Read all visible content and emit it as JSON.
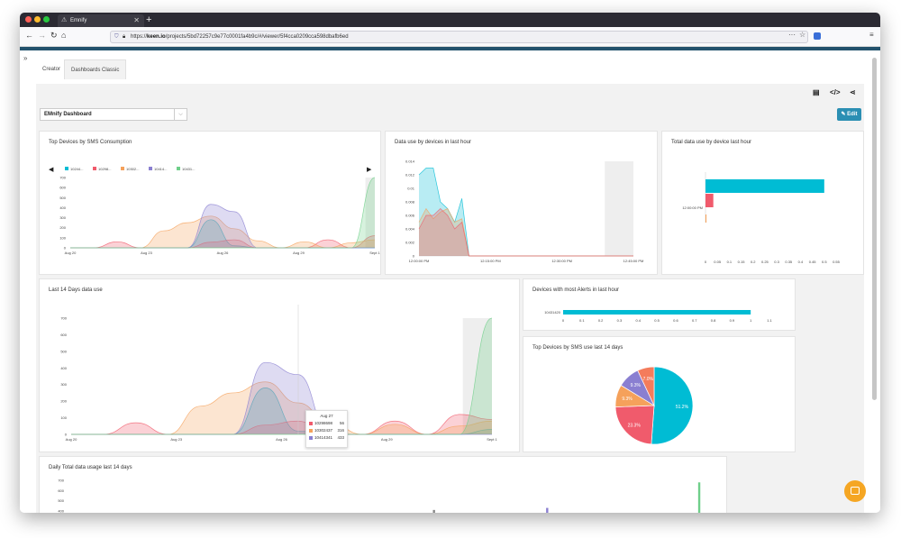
{
  "browser": {
    "tab_title": "Emnify",
    "url_prefix": "https://",
    "url_host": "keen.io",
    "url_path": "/projects/5bd72257c9e77c0001fa4b9c/#/viewer/5f4cca0209cca598dbafb6ed",
    "new_tab": "+",
    "more": "···",
    "star": "☆"
  },
  "nav_tabs": [
    {
      "label": "Creator"
    },
    {
      "label": "Dashboards Classic"
    }
  ],
  "dashboard_select": {
    "value": "EMnify Dashboard",
    "chev": "⌵"
  },
  "edit_button": {
    "label": "✎ Edit"
  },
  "toolbar": {
    "doc": "▤",
    "code": "</>",
    "share": "⋖"
  },
  "colors": {
    "teal": "#00bcd4",
    "red": "#f05b6c",
    "orange": "#f5a15b",
    "purple": "#8a7fd1",
    "coral": "#f47c5c",
    "green": "#6fcf8a",
    "gray": "#888"
  },
  "cards": {
    "sms": {
      "title": "Top Devices by SMS Consumption"
    },
    "data_hour": {
      "title": "Data use by devices in last hour"
    },
    "total_device": {
      "title": "Total data use by device last hour"
    },
    "days14": {
      "title": "Last 14 Days data use"
    },
    "alerts": {
      "title": "Devices with most Alerts in last hour"
    },
    "sms14": {
      "title": "Top Devices by SMS use last 14 days"
    },
    "daily": {
      "title": "Daily Total data usage last 14 days"
    }
  },
  "tooltip": {
    "date": "Aug 27",
    "rows": [
      {
        "device": "10298698",
        "value": "56",
        "color": "#f05b6c"
      },
      {
        "device": "10302437",
        "value": "316",
        "color": "#f5a15b"
      },
      {
        "device": "10414341",
        "value": "433",
        "color": "#8a7fd1"
      }
    ]
  },
  "chart_data": [
    {
      "type": "area",
      "title": "Top Devices by SMS Consumption",
      "legend": [
        "10244...",
        "10298...",
        "10302...",
        "10414...",
        "10431..."
      ],
      "x_ticks": [
        "Aug 20",
        "Aug 23",
        "Aug 26",
        "Aug 29",
        "Sept 1"
      ],
      "y_ticks": [
        "0",
        "100",
        "200",
        "300",
        "400",
        "500",
        "600",
        "700"
      ],
      "ylim": [
        0,
        700
      ],
      "x": [
        0,
        1,
        2,
        3,
        4,
        5,
        6,
        7,
        8,
        9,
        10,
        11,
        12,
        13
      ],
      "series": [
        {
          "color": "#00bcd4",
          "values": [
            0,
            0,
            0,
            0,
            0,
            0,
            280,
            20,
            0,
            0,
            0,
            0,
            0,
            0
          ]
        },
        {
          "color": "#f05b6c",
          "values": [
            0,
            0,
            60,
            0,
            0,
            0,
            56,
            80,
            0,
            0,
            0,
            80,
            0,
            120
          ]
        },
        {
          "color": "#f5a15b",
          "values": [
            0,
            0,
            0,
            0,
            170,
            250,
            316,
            190,
            70,
            0,
            60,
            0,
            50,
            80
          ]
        },
        {
          "color": "#8a7fd1",
          "values": [
            0,
            0,
            0,
            0,
            0,
            0,
            433,
            360,
            0,
            0,
            0,
            0,
            0,
            0
          ]
        },
        {
          "color": "#6fcf8a",
          "values": [
            0,
            0,
            0,
            0,
            0,
            0,
            0,
            0,
            0,
            0,
            0,
            0,
            0,
            700
          ]
        }
      ]
    },
    {
      "type": "area",
      "title": "Data use by devices in last hour",
      "x_ticks": [
        "12:00:00 PM",
        "12:15:00 PM",
        "12:30:00 PM",
        "12:45:00 PM"
      ],
      "y_ticks": [
        "0",
        "0.002",
        "0.004",
        "0.006",
        "0.008",
        "0.01",
        "0.012",
        "0.014"
      ],
      "ylim": [
        0,
        0.014
      ],
      "x": [
        0,
        2,
        4,
        6,
        8,
        10,
        12,
        14,
        16,
        18,
        20,
        22,
        24,
        26,
        28,
        30,
        32,
        34,
        36,
        38,
        40,
        42,
        44,
        46,
        48,
        50,
        52,
        54,
        56,
        58,
        60
      ],
      "series": [
        {
          "color": "#00bcd4",
          "values": [
            0.012,
            0.013,
            0.013,
            0.008,
            0.007,
            0.005,
            0.0085,
            0,
            0,
            0,
            0,
            0,
            0,
            0,
            0,
            0,
            0,
            0,
            0,
            0,
            0,
            0,
            0,
            0,
            0,
            0,
            0,
            0,
            0,
            0,
            0
          ]
        },
        {
          "color": "#f5a15b",
          "values": [
            0.005,
            0.007,
            0.0055,
            0.0065,
            0.007,
            0.005,
            0.0055,
            0,
            0,
            0,
            0,
            0,
            0,
            0,
            0,
            0,
            0,
            0,
            0,
            0,
            0,
            0,
            0,
            0,
            0,
            0,
            0,
            0,
            0,
            0,
            0
          ]
        },
        {
          "color": "#f05b6c",
          "values": [
            0.004,
            0.006,
            0.006,
            0.007,
            0.006,
            0.004,
            0.005,
            0,
            0,
            0,
            0,
            0,
            0,
            0,
            0,
            0,
            0,
            0,
            0,
            0,
            0,
            0,
            0,
            0,
            0,
            0,
            0,
            0,
            0,
            0,
            0
          ]
        }
      ]
    },
    {
      "type": "bar",
      "title": "Total data use by device last hour",
      "categories": [
        "12:00:00 PM"
      ],
      "x_ticks": [
        "0",
        "0.05",
        "0.1",
        "0.15",
        "0.2",
        "0.25",
        "0.3",
        "0.35",
        "0.4",
        "0.45",
        "0.5",
        "0.55"
      ],
      "xlim": [
        0,
        0.55
      ],
      "series": [
        {
          "color": "#00bcd4",
          "values": [
            0.5
          ]
        },
        {
          "color": "#f05b6c",
          "values": [
            0.033
          ]
        },
        {
          "color": "#f5a15b",
          "values": [
            0.004
          ]
        }
      ]
    },
    {
      "type": "area",
      "title": "Last 14 Days data use",
      "x_ticks": [
        "Aug 20",
        "Aug 23",
        "Aug 26",
        "Aug 29",
        "Sept 1"
      ],
      "y_ticks": [
        "0",
        "100",
        "200",
        "300",
        "400",
        "500",
        "600",
        "700"
      ],
      "ylim": [
        0,
        700
      ],
      "x": [
        0,
        1,
        2,
        3,
        4,
        5,
        6,
        7,
        8,
        9,
        10,
        11,
        12,
        13
      ],
      "series": [
        {
          "color": "#00bcd4",
          "values": [
            0,
            0,
            0,
            0,
            0,
            0,
            280,
            20,
            0,
            0,
            0,
            0,
            0,
            30
          ]
        },
        {
          "color": "#f05b6c",
          "values": [
            0,
            0,
            70,
            0,
            0,
            0,
            56,
            80,
            0,
            0,
            80,
            0,
            120,
            90
          ]
        },
        {
          "color": "#f5a15b",
          "values": [
            0,
            0,
            0,
            0,
            170,
            250,
            316,
            190,
            70,
            0,
            60,
            0,
            50,
            80
          ]
        },
        {
          "color": "#8a7fd1",
          "values": [
            0,
            0,
            0,
            0,
            0,
            0,
            433,
            360,
            0,
            0,
            0,
            0,
            0,
            0
          ]
        },
        {
          "color": "#6fcf8a",
          "values": [
            0,
            0,
            0,
            0,
            0,
            0,
            0,
            0,
            0,
            0,
            0,
            0,
            0,
            700
          ]
        }
      ]
    },
    {
      "type": "bar",
      "title": "Devices with most Alerts in last hour",
      "categories": [
        "10431420"
      ],
      "values": [
        1
      ],
      "x_ticks": [
        "0",
        "0.1",
        "0.2",
        "0.3",
        "0.4",
        "0.5",
        "0.6",
        "0.7",
        "0.8",
        "0.9",
        "1",
        "1.1"
      ],
      "xlim": [
        0,
        1.1
      ]
    },
    {
      "type": "pie",
      "title": "Top Devices by SMS use last 14 days",
      "slices": [
        {
          "label": "51.2%",
          "value": 51.2,
          "color": "#00bcd4"
        },
        {
          "label": "23.3%",
          "value": 23.3,
          "color": "#f05b6c"
        },
        {
          "label": "9.3%",
          "value": 9.3,
          "color": "#f5a15b"
        },
        {
          "label": "9.3%",
          "value": 9.3,
          "color": "#8a7fd1"
        },
        {
          "label": "7.0%",
          "value": 7.0,
          "color": "#f47c5c"
        }
      ]
    },
    {
      "type": "bar",
      "title": "Daily Total data usage last 14 days",
      "y_ticks": [
        "400",
        "500",
        "600",
        "700"
      ],
      "ylim": [
        400,
        700
      ],
      "bars": [
        {
          "x": 0.565,
          "value": 410,
          "color": "#888"
        },
        {
          "x": 0.74,
          "value": 430,
          "color": "#8a7fd1"
        },
        {
          "x": 0.975,
          "value": 680,
          "color": "#6fcf8a"
        }
      ]
    }
  ]
}
